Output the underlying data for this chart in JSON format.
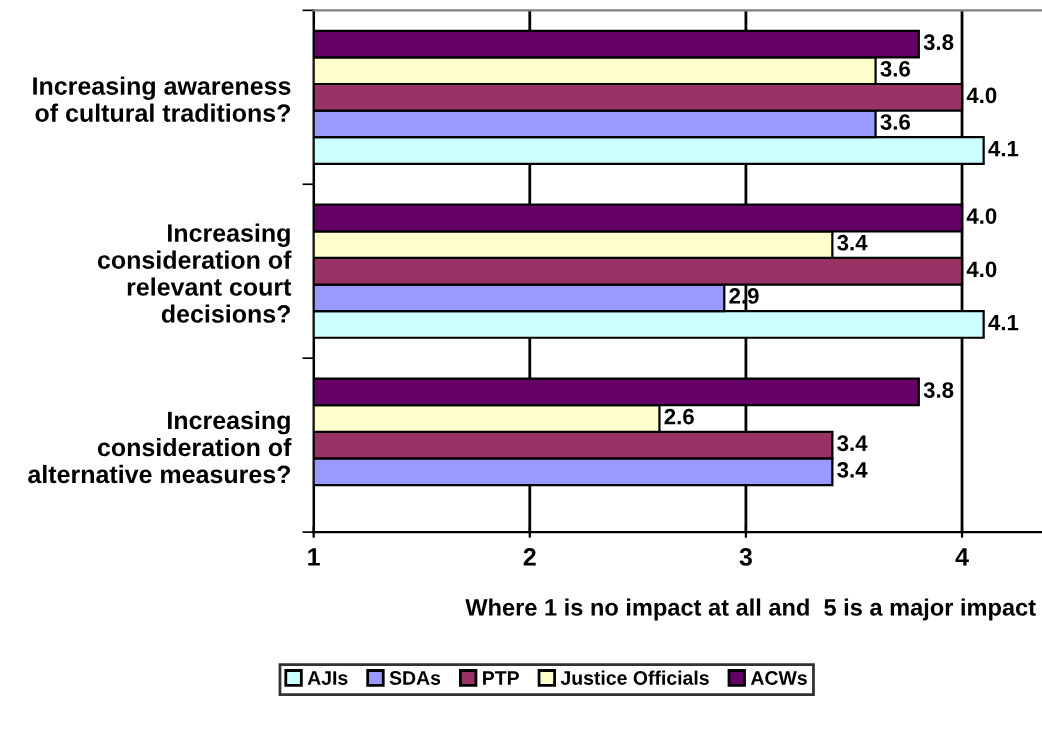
{
  "chart_data": {
    "type": "bar",
    "orientation": "horizontal",
    "categories": [
      "Increasing awareness\nof cultural traditions?",
      "Increasing\nconsideration of\nrelevant court\ndecisions?",
      "Increasing\nconsideration of\nalternative measures?"
    ],
    "series": [
      {
        "name": "AJIs",
        "color": "#ccffff",
        "values": [
          4.1,
          4.1,
          null
        ],
        "value_labels": [
          "4.1",
          "4.1",
          null
        ]
      },
      {
        "name": "SDAs",
        "color": "#9999ff",
        "values": [
          3.6,
          2.9,
          3.4
        ],
        "value_labels": [
          "3.6",
          "2.9",
          "3.4"
        ]
      },
      {
        "name": "PTP",
        "color": "#993366",
        "values": [
          4.0,
          4.0,
          3.4
        ],
        "value_labels": [
          "4.0",
          "4.0",
          "3.4"
        ]
      },
      {
        "name": "Justice Officials",
        "color": "#ffffcc",
        "values": [
          3.6,
          3.4,
          2.6
        ],
        "value_labels": [
          "3.6",
          "3.4",
          "2.6"
        ]
      },
      {
        "name": "ACWs",
        "color": "#660066",
        "values": [
          3.8,
          4.0,
          3.8
        ],
        "value_labels": [
          "3.8",
          "4.0",
          "3.8"
        ]
      }
    ],
    "xlabel": "Where 1 is no impact at all and  5 is a major impact",
    "xlim": [
      1,
      4.37
    ],
    "xticks": [
      1,
      2,
      3,
      4
    ],
    "grid": "x",
    "legend": "bottom"
  }
}
